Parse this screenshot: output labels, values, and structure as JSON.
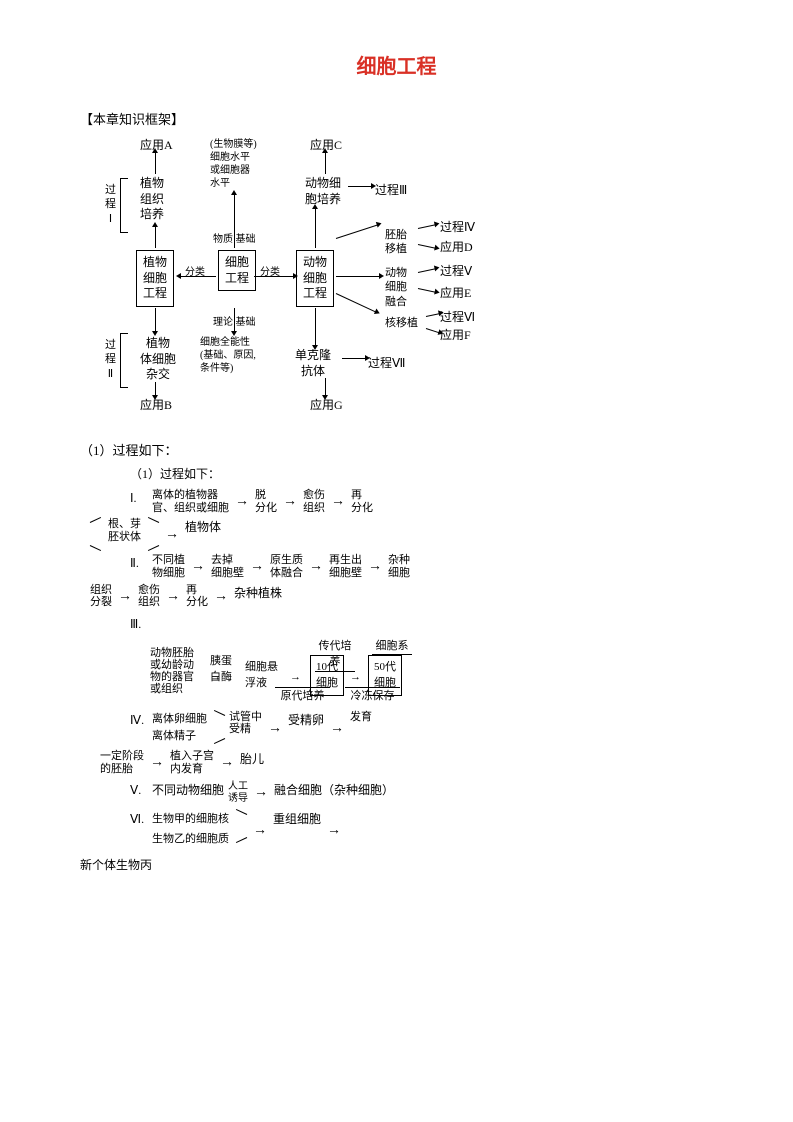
{
  "title": "细胞工程",
  "section_label": "【本章知识框架】",
  "colors": {
    "title": "#d93025",
    "text": "#000000",
    "bg": "#ffffff",
    "line": "#000000"
  },
  "typography": {
    "title_pt": 20,
    "body_pt": 13,
    "small_pt": 12,
    "tiny_pt": 11,
    "title_weight": 700
  },
  "diagram1": {
    "type": "flowchart",
    "nodes": {
      "app_a": "应用A",
      "app_b": "应用B",
      "app_c": "应用C",
      "app_d": "应用D",
      "app_e": "应用E",
      "app_f": "应用F",
      "app_g": "应用G",
      "plant_culture": "植物\n组织\n培养",
      "plant_eng": "植物\n细胞\n工程",
      "cell_eng": "细胞\n工程",
      "animal_eng": "动物\n细胞\n工程",
      "plant_somatic": "植物\n体细胞\n杂交",
      "mono_ab": "单克隆\n抗体",
      "animal_culture": "动物细\n胞培养",
      "proc1": "过\n程\nⅠ",
      "proc2": "过\n程\nⅡ",
      "proc3": "过程Ⅲ",
      "proc4": "过程Ⅳ",
      "proc5": "过程Ⅴ",
      "proc6": "过程Ⅵ",
      "proc7": "过程Ⅶ",
      "embryo": "胚胎\n移植",
      "fusion": "动物\n细胞\n融合",
      "nuclear": "核移植",
      "biolevel": "(生物膜等)\n细胞水平\n或细胞器\n水平",
      "matbasis": "物质 基础",
      "thbasis": "理论 基础",
      "cell_total": "细胞全能性\n(基础、原因,\n条件等)",
      "classify1": "分类",
      "classify2": "分类"
    }
  },
  "process_label": "（1）过程如下：",
  "process_label_2": "（1）过程如下：",
  "steps": {
    "I_label": "Ⅰ.",
    "I_items": [
      "离体的植物器\n官、组织或细胞",
      "脱\n分化",
      "愈伤\n组织",
      "再\n分化"
    ],
    "I_branch": [
      "根、芽",
      "胚状体"
    ],
    "I_result": "植物体",
    "II_label": "Ⅱ.",
    "II_items": [
      "不同植\n物细胞",
      "去掉\n细胞壁",
      "原生质\n体融合",
      "再生出\n细胞壁",
      "杂种\n细胞"
    ],
    "II_items2": [
      "组织\n分裂",
      "愈伤\n组织",
      "再\n分化",
      "杂种植株"
    ],
    "III_label": "Ⅲ.",
    "III_items": {
      "src": "动物胚胎\n或幼龄动\n物的器官\n或组织",
      "trypsin": "胰蛋\n白酶",
      "susp": "细胞悬\n浮液",
      "t10": "10代\n细胞",
      "t50": "50代\n细胞",
      "top1": "传代培养",
      "top2": "细胞系",
      "bot1": "原代培养",
      "bot2": "冷冻保存"
    },
    "IV_label": "Ⅳ.",
    "IV_top": "离体卵细胞",
    "IV_bot": "离体精子",
    "IV_mid1": "试管中\n受精",
    "IV_mid2": "受精卵",
    "IV_mid3": "发育",
    "IV_next1": "一定阶段\n的胚胎",
    "IV_next2": "植入子宫\n内发育",
    "IV_next3": "胎儿",
    "V_label": "Ⅴ.",
    "V_text": "不同动物细胞",
    "V_over": "人工\n诱导",
    "V_result": "融合细胞（杂种细胞）",
    "VI_label": "Ⅵ.",
    "VI_top": "生物甲的细胞核",
    "VI_bot": "生物乙的细胞质",
    "VI_result": "重组细胞",
    "VI_out": "新个体生物丙"
  }
}
